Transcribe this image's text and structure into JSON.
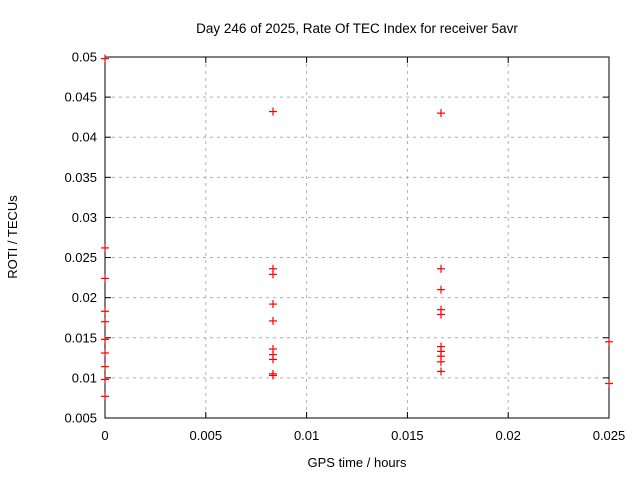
{
  "chart_data": {
    "type": "scatter",
    "title": "Day 246 of 2025, Rate Of TEC Index for receiver 5avr",
    "xlabel": "GPS time / hours",
    "ylabel": "ROTI / TECUs",
    "xlim": [
      0,
      0.025
    ],
    "ylim": [
      0.005,
      0.05
    ],
    "x_ticks": [
      0,
      0.005,
      0.01,
      0.015,
      0.02,
      0.025
    ],
    "x_tick_labels": [
      "0",
      "0.005",
      "0.01",
      "0.015",
      "0.02",
      "0.025"
    ],
    "y_ticks": [
      0.005,
      0.01,
      0.015,
      0.02,
      0.025,
      0.03,
      0.035,
      0.04,
      0.045,
      0.05
    ],
    "y_tick_labels": [
      "0.005",
      "0.01",
      "0.015",
      "0.02",
      "0.025",
      "0.03",
      "0.035",
      "0.04",
      "0.045",
      "0.05"
    ],
    "grid": true,
    "legend": "none",
    "marker": {
      "shape": "plus",
      "color": "#ff0000",
      "size": 8
    },
    "colors": {
      "axis": "#000000",
      "grid": "#b0b0b0",
      "text": "#000000",
      "background": "#ffffff"
    },
    "series": [
      {
        "name": "ROTI",
        "points": [
          [
            0,
            0.0498
          ],
          [
            0,
            0.0262
          ],
          [
            0,
            0.0224
          ],
          [
            0,
            0.0183
          ],
          [
            0,
            0.017
          ],
          [
            0,
            0.0148
          ],
          [
            0,
            0.0131
          ],
          [
            0,
            0.0114
          ],
          [
            0,
            0.0098
          ],
          [
            0,
            0.0077
          ],
          [
            0.008333,
            0.0432
          ],
          [
            0.008333,
            0.0236
          ],
          [
            0.008333,
            0.0229
          ],
          [
            0.008333,
            0.0192
          ],
          [
            0.008333,
            0.0171
          ],
          [
            0.008333,
            0.0136
          ],
          [
            0.008333,
            0.0129
          ],
          [
            0.008333,
            0.0123
          ],
          [
            0.008333,
            0.0105
          ],
          [
            0.008333,
            0.0103
          ],
          [
            0.016667,
            0.043
          ],
          [
            0.016667,
            0.0236
          ],
          [
            0.016667,
            0.021
          ],
          [
            0.016667,
            0.0185
          ],
          [
            0.016667,
            0.0179
          ],
          [
            0.016667,
            0.0139
          ],
          [
            0.016667,
            0.0133
          ],
          [
            0.016667,
            0.0127
          ],
          [
            0.016667,
            0.012
          ],
          [
            0.016667,
            0.0108
          ],
          [
            0.025,
            0.0145
          ],
          [
            0.025,
            0.0093
          ]
        ]
      }
    ]
  }
}
